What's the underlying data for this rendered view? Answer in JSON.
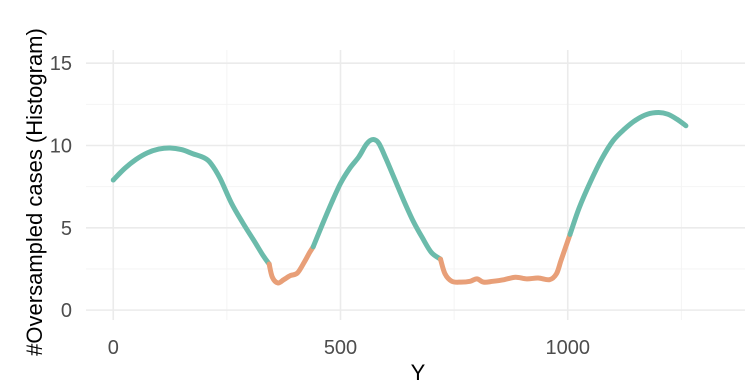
{
  "chart_data": {
    "type": "line",
    "title": "",
    "xlabel": "Y",
    "ylabel": "#Oversampled cases (Histogram)",
    "xlim": [
      -60,
      1390
    ],
    "ylim": [
      -0.6,
      15.8
    ],
    "x_ticks": [
      0,
      500,
      1000
    ],
    "x_tick_labels": [
      "0",
      "500",
      "1000"
    ],
    "y_ticks": [
      0,
      5,
      10,
      15
    ],
    "y_tick_labels": [
      "0",
      "5",
      "10",
      "15"
    ],
    "grid": true,
    "legend": "none",
    "colors": {
      "above_threshold": "#6bbbab",
      "below_threshold": "#e89f78"
    },
    "series": [
      {
        "color": "#6bbbab",
        "x": [
          0,
          25,
          50,
          75,
          100,
          125,
          150,
          175,
          200,
          215,
          235,
          260,
          285,
          310,
          330,
          343
        ],
        "y": [
          7.9,
          8.6,
          9.15,
          9.55,
          9.78,
          9.85,
          9.75,
          9.5,
          9.25,
          8.9,
          8.0,
          6.5,
          5.3,
          4.2,
          3.3,
          2.8
        ]
      },
      {
        "color": "#e89f78",
        "x": [
          343,
          350,
          362,
          375,
          390,
          405,
          420,
          432,
          440
        ],
        "y": [
          2.8,
          2.0,
          1.65,
          1.85,
          2.1,
          2.25,
          2.9,
          3.5,
          3.85
        ]
      },
      {
        "color": "#6bbbab",
        "x": [
          440,
          460,
          480,
          500,
          520,
          540,
          555,
          565,
          575,
          585,
          600,
          620,
          640,
          660,
          680,
          700,
          720
        ],
        "y": [
          3.85,
          5.2,
          6.5,
          7.7,
          8.6,
          9.3,
          10.0,
          10.3,
          10.35,
          10.1,
          9.2,
          7.9,
          6.6,
          5.4,
          4.4,
          3.5,
          3.1
        ]
      },
      {
        "color": "#e89f78",
        "x": [
          720,
          730,
          745,
          765,
          785,
          800,
          815,
          835,
          860,
          885,
          910,
          935,
          960,
          975,
          985,
          995,
          1005
        ],
        "y": [
          3.1,
          2.2,
          1.75,
          1.7,
          1.75,
          1.9,
          1.7,
          1.75,
          1.85,
          2.0,
          1.9,
          1.95,
          1.85,
          2.2,
          3.0,
          3.8,
          4.6
        ]
      },
      {
        "color": "#6bbbab",
        "x": [
          1005,
          1025,
          1050,
          1075,
          1100,
          1125,
          1150,
          1175,
          1200,
          1220,
          1240,
          1260
        ],
        "y": [
          4.6,
          6.2,
          7.8,
          9.2,
          10.3,
          11.0,
          11.55,
          11.9,
          12.0,
          11.9,
          11.6,
          11.2
        ]
      }
    ]
  }
}
